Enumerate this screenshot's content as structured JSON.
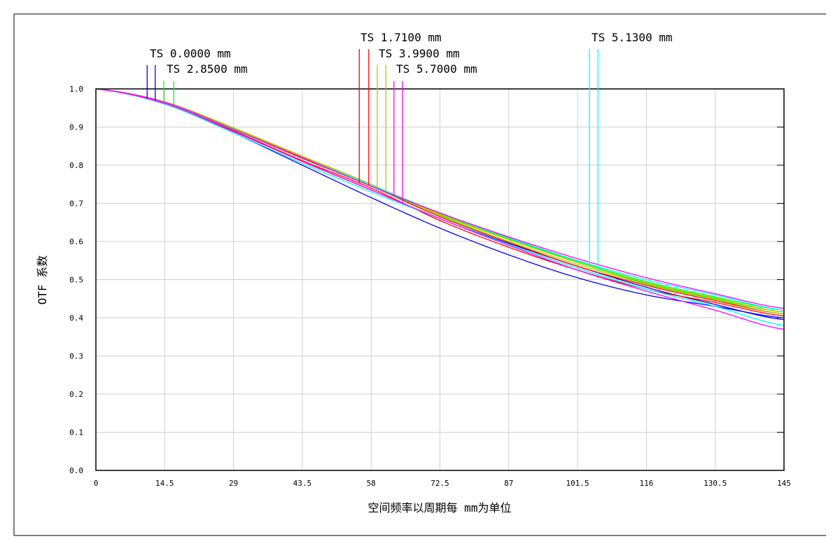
{
  "chart_data": {
    "type": "line",
    "title": "",
    "xlabel": "空间频率以周期每 mm为单位",
    "ylabel": "OTF 系数",
    "xlim": [
      0,
      145
    ],
    "ylim": [
      0,
      1.0
    ],
    "grid": true,
    "x_ticks": [
      "0",
      "14.5",
      "29",
      "43.5",
      "58",
      "72.5",
      "87",
      "101.5",
      "116",
      "130.5",
      "145"
    ],
    "y_ticks": [
      "0.0",
      "0.1",
      "0.2",
      "0.3",
      "0.4",
      "0.5",
      "0.6",
      "0.7",
      "0.8",
      "0.9",
      "1.0"
    ],
    "x": [
      0,
      14.5,
      29,
      43.5,
      58,
      72.5,
      87,
      101.5,
      116,
      130.5,
      145
    ],
    "series": [
      {
        "name": "TS 0.0000 mm",
        "color": "#0000ff",
        "marker_x": [
          10.8,
          12.5
        ],
        "tangential": [
          1,
          0.962,
          0.885,
          0.8,
          0.715,
          0.635,
          0.565,
          0.505,
          0.46,
          0.43,
          0.4
        ],
        "sagittal": [
          1,
          0.963,
          0.89,
          0.81,
          0.735,
          0.66,
          0.595,
          0.535,
          0.48,
          0.435,
          0.395
        ]
      },
      {
        "name": "TS 1.7100 mm",
        "color": "#ff0000",
        "marker_x": [
          55.5,
          57.5
        ],
        "tangential": [
          1,
          0.963,
          0.89,
          0.812,
          0.74,
          0.655,
          0.585,
          0.525,
          0.475,
          0.44,
          0.405
        ],
        "sagittal": [
          1,
          0.964,
          0.893,
          0.818,
          0.745,
          0.665,
          0.598,
          0.535,
          0.485,
          0.445,
          0.41
        ]
      },
      {
        "name": "TS 2.8500 mm",
        "color": "#00ff00",
        "marker_x": [
          14.3,
          16.4
        ],
        "tangential": [
          1,
          0.965,
          0.895,
          0.82,
          0.745,
          0.67,
          0.605,
          0.545,
          0.49,
          0.45,
          0.415
        ],
        "sagittal": [
          1,
          0.966,
          0.898,
          0.823,
          0.748,
          0.674,
          0.608,
          0.548,
          0.495,
          0.455,
          0.42
        ]
      },
      {
        "name": "TS 3.9900 mm",
        "color": "#c0c000",
        "marker_x": [
          59.3,
          61.1
        ],
        "tangential": [
          1,
          0.966,
          0.898,
          0.824,
          0.75,
          0.668,
          0.6,
          0.54,
          0.488,
          0.448,
          0.41
        ],
        "sagittal": [
          1,
          0.966,
          0.897,
          0.822,
          0.747,
          0.672,
          0.605,
          0.545,
          0.492,
          0.452,
          0.415
        ]
      },
      {
        "name": "TS 5.1300 mm",
        "color": "#00ffff",
        "marker_x": [
          104.0,
          105.8
        ],
        "tangential": [
          1,
          0.964,
          0.893,
          0.82,
          0.748,
          0.675,
          0.61,
          0.55,
          0.5,
          0.46,
          0.42
        ],
        "sagittal": [
          1,
          0.96,
          0.885,
          0.805,
          0.73,
          0.66,
          0.592,
          0.53,
          0.475,
          0.43,
          0.38
        ]
      },
      {
        "name": "TS 5.7000 mm",
        "color": "#ff00ff",
        "marker_x": [
          62.8,
          64.6
        ],
        "tangential": [
          1,
          0.965,
          0.894,
          0.82,
          0.745,
          0.675,
          0.612,
          0.555,
          0.505,
          0.463,
          0.425
        ],
        "sagittal": [
          1,
          0.962,
          0.888,
          0.81,
          0.735,
          0.66,
          0.59,
          0.525,
          0.47,
          0.42,
          0.37
        ]
      }
    ]
  }
}
